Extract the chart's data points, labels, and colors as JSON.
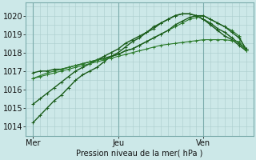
{
  "bg_color": "#cce8e8",
  "grid_color": "#aacccc",
  "line_color_dark": "#1a5c1a",
  "line_color_med": "#2a7a2a",
  "line_color_light": "#3a9a3a",
  "xlabel": "Pression niveau de la mer( hPa )",
  "xtick_labels": [
    "Mer",
    "Jeu",
    "Ven"
  ],
  "xtick_positions": [
    0,
    48,
    96
  ],
  "ylim": [
    1013.5,
    1020.7
  ],
  "yticks": [
    1014,
    1015,
    1016,
    1017,
    1018,
    1019,
    1020
  ],
  "xlim": [
    -2,
    122
  ],
  "series": [
    {
      "x": [
        0,
        4,
        8,
        12,
        16,
        20,
        24,
        28,
        32,
        36,
        40,
        44,
        48,
        52,
        56,
        60,
        64,
        68,
        72,
        76,
        80,
        84,
        88,
        92,
        96,
        100,
        104,
        108,
        112,
        116,
        120
      ],
      "y": [
        1014.2,
        1014.6,
        1015.0,
        1015.4,
        1015.7,
        1016.1,
        1016.5,
        1016.8,
        1017.0,
        1017.2,
        1017.5,
        1017.8,
        1018.0,
        1018.3,
        1018.6,
        1018.8,
        1019.1,
        1019.3,
        1019.6,
        1019.8,
        1020.0,
        1020.1,
        1020.1,
        1020.0,
        1019.8,
        1019.5,
        1019.2,
        1018.9,
        1018.7,
        1018.4,
        1018.1
      ],
      "color": "#1a5c1a",
      "lw": 1.0
    },
    {
      "x": [
        0,
        4,
        8,
        12,
        16,
        20,
        24,
        28,
        32,
        36,
        40,
        44,
        48,
        52,
        56,
        60,
        64,
        68,
        72,
        76,
        80,
        84,
        88,
        92,
        96,
        100,
        104,
        108,
        112,
        116,
        120
      ],
      "y": [
        1015.2,
        1015.5,
        1015.8,
        1016.1,
        1016.4,
        1016.7,
        1017.0,
        1017.2,
        1017.4,
        1017.6,
        1017.8,
        1018.0,
        1018.2,
        1018.5,
        1018.7,
        1018.9,
        1019.1,
        1019.4,
        1019.6,
        1019.8,
        1020.0,
        1020.1,
        1020.1,
        1020.0,
        1019.8,
        1019.6,
        1019.3,
        1019.1,
        1018.8,
        1018.5,
        1018.2
      ],
      "color": "#1a5c1a",
      "lw": 1.0
    },
    {
      "x": [
        0,
        4,
        8,
        12,
        16,
        20,
        24,
        28,
        32,
        36,
        40,
        44,
        48,
        52,
        56,
        60,
        64,
        68,
        72,
        76,
        80,
        84,
        88,
        92,
        96,
        100,
        104,
        108,
        112,
        116,
        120
      ],
      "y": [
        1016.6,
        1016.7,
        1016.8,
        1016.9,
        1017.0,
        1017.1,
        1017.2,
        1017.3,
        1017.4,
        1017.5,
        1017.6,
        1017.8,
        1017.9,
        1018.1,
        1018.2,
        1018.4,
        1018.6,
        1018.8,
        1019.0,
        1019.2,
        1019.4,
        1019.6,
        1019.8,
        1019.9,
        1020.0,
        1019.8,
        1019.6,
        1019.4,
        1019.2,
        1018.9,
        1018.1
      ],
      "color": "#2a7a2a",
      "lw": 0.8
    },
    {
      "x": [
        0,
        4,
        8,
        12,
        16,
        20,
        24,
        28,
        32,
        36,
        40,
        44,
        48,
        52,
        56,
        60,
        64,
        68,
        72,
        76,
        80,
        84,
        88,
        92,
        96,
        100,
        104,
        108,
        112,
        116,
        120
      ],
      "y": [
        1016.9,
        1017.0,
        1017.0,
        1017.1,
        1017.1,
        1017.2,
        1017.3,
        1017.4,
        1017.5,
        1017.6,
        1017.7,
        1017.8,
        1017.9,
        1018.1,
        1018.2,
        1018.4,
        1018.6,
        1018.8,
        1019.0,
        1019.2,
        1019.5,
        1019.7,
        1019.9,
        1020.0,
        1020.0,
        1019.8,
        1019.6,
        1019.4,
        1019.1,
        1018.8,
        1018.2
      ],
      "color": "#1a5c1a",
      "lw": 1.0
    },
    {
      "x": [
        0,
        4,
        8,
        12,
        16,
        20,
        24,
        28,
        32,
        36,
        40,
        44,
        48,
        52,
        56,
        60,
        64,
        68,
        72,
        76,
        80,
        84,
        88,
        92,
        96,
        100,
        104,
        108,
        112,
        116,
        120
      ],
      "y": [
        1016.6,
        1016.75,
        1016.9,
        1017.0,
        1017.1,
        1017.2,
        1017.3,
        1017.4,
        1017.5,
        1017.6,
        1017.65,
        1017.7,
        1017.8,
        1017.9,
        1018.0,
        1018.1,
        1018.2,
        1018.3,
        1018.4,
        1018.45,
        1018.5,
        1018.55,
        1018.6,
        1018.65,
        1018.7,
        1018.7,
        1018.7,
        1018.7,
        1018.65,
        1018.6,
        1018.1
      ],
      "color": "#2a7a2a",
      "lw": 0.8
    }
  ]
}
